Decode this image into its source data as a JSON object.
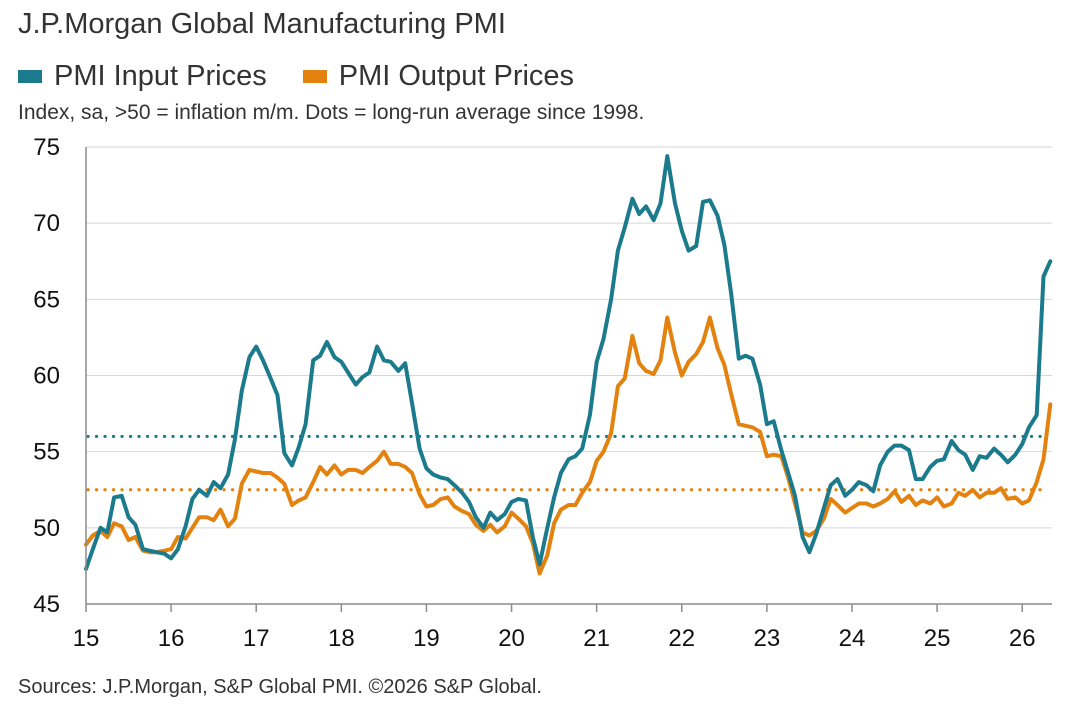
{
  "title": "J.P.Morgan Global Manufacturing PMI",
  "subtitle": "Index, sa, >50 = inflation m/m. Dots = long-run average since 1998.",
  "source": "Sources: J.P.Morgan, S&P Global PMI. ©2026 S&P Global.",
  "chart_data": {
    "type": "line",
    "title": "J.P.Morgan Global Manufacturing PMI",
    "subtitle": "Index, sa, >50 = inflation m/m. Dots = long-run average since 1998.",
    "legend_position": "top-left",
    "grid": "horizontal",
    "ylim": [
      45,
      75
    ],
    "yticks": [
      "45",
      "50",
      "55",
      "60",
      "65",
      "70",
      "75"
    ],
    "xlim": [
      2015.0,
      2026.35
    ],
    "xticks": [
      "15",
      "16",
      "17",
      "18",
      "19",
      "20",
      "21",
      "22",
      "23",
      "24",
      "25",
      "26"
    ],
    "series": [
      {
        "name": "PMI Input Prices",
        "color": "#1b7a8c",
        "long_run_average": 56.0,
        "points": [
          [
            2015.0,
            47.3
          ],
          [
            2015.08,
            48.6
          ],
          [
            2015.17,
            50.0
          ],
          [
            2015.25,
            49.7
          ],
          [
            2015.33,
            52.0
          ],
          [
            2015.42,
            52.1
          ],
          [
            2015.5,
            50.7
          ],
          [
            2015.58,
            50.2
          ],
          [
            2015.67,
            48.6
          ],
          [
            2015.75,
            48.5
          ],
          [
            2015.83,
            48.4
          ],
          [
            2015.92,
            48.3
          ],
          [
            2016.0,
            48.0
          ],
          [
            2016.08,
            48.6
          ],
          [
            2016.17,
            50.1
          ],
          [
            2016.25,
            51.9
          ],
          [
            2016.33,
            52.5
          ],
          [
            2016.42,
            52.1
          ],
          [
            2016.5,
            53.0
          ],
          [
            2016.58,
            52.6
          ],
          [
            2016.67,
            53.5
          ],
          [
            2016.75,
            55.8
          ],
          [
            2016.83,
            59.0
          ],
          [
            2016.92,
            61.2
          ],
          [
            2017.0,
            61.9
          ],
          [
            2017.08,
            61.0
          ],
          [
            2017.17,
            59.8
          ],
          [
            2017.25,
            58.7
          ],
          [
            2017.33,
            54.9
          ],
          [
            2017.42,
            54.1
          ],
          [
            2017.5,
            55.3
          ],
          [
            2017.58,
            56.8
          ],
          [
            2017.67,
            61.0
          ],
          [
            2017.75,
            61.3
          ],
          [
            2017.83,
            62.2
          ],
          [
            2017.92,
            61.2
          ],
          [
            2018.0,
            60.9
          ],
          [
            2018.08,
            60.2
          ],
          [
            2018.17,
            59.4
          ],
          [
            2018.25,
            59.9
          ],
          [
            2018.33,
            60.2
          ],
          [
            2018.42,
            61.9
          ],
          [
            2018.5,
            61.0
          ],
          [
            2018.58,
            60.9
          ],
          [
            2018.67,
            60.3
          ],
          [
            2018.75,
            60.8
          ],
          [
            2018.83,
            58.2
          ],
          [
            2018.92,
            55.2
          ],
          [
            2019.0,
            53.9
          ],
          [
            2019.08,
            53.5
          ],
          [
            2019.17,
            53.3
          ],
          [
            2019.25,
            53.2
          ],
          [
            2019.33,
            52.8
          ],
          [
            2019.42,
            52.3
          ],
          [
            2019.5,
            51.7
          ],
          [
            2019.58,
            50.7
          ],
          [
            2019.67,
            50.0
          ],
          [
            2019.75,
            51.0
          ],
          [
            2019.83,
            50.5
          ],
          [
            2019.92,
            50.9
          ],
          [
            2020.0,
            51.7
          ],
          [
            2020.08,
            51.9
          ],
          [
            2020.17,
            51.8
          ],
          [
            2020.25,
            49.4
          ],
          [
            2020.33,
            47.6
          ],
          [
            2020.42,
            50.0
          ],
          [
            2020.5,
            52.0
          ],
          [
            2020.58,
            53.6
          ],
          [
            2020.67,
            54.5
          ],
          [
            2020.75,
            54.7
          ],
          [
            2020.83,
            55.2
          ],
          [
            2020.92,
            57.4
          ],
          [
            2021.0,
            60.9
          ],
          [
            2021.08,
            62.4
          ],
          [
            2021.17,
            65.0
          ],
          [
            2021.25,
            68.2
          ],
          [
            2021.33,
            69.7
          ],
          [
            2021.42,
            71.6
          ],
          [
            2021.5,
            70.6
          ],
          [
            2021.58,
            71.1
          ],
          [
            2021.67,
            70.2
          ],
          [
            2021.75,
            71.3
          ],
          [
            2021.83,
            74.4
          ],
          [
            2021.92,
            71.3
          ],
          [
            2022.0,
            69.5
          ],
          [
            2022.08,
            68.2
          ],
          [
            2022.17,
            68.5
          ],
          [
            2022.25,
            71.4
          ],
          [
            2022.33,
            71.5
          ],
          [
            2022.42,
            70.5
          ],
          [
            2022.5,
            68.6
          ],
          [
            2022.58,
            65.4
          ],
          [
            2022.67,
            61.1
          ],
          [
            2022.75,
            61.3
          ],
          [
            2022.83,
            61.1
          ],
          [
            2022.92,
            59.4
          ],
          [
            2023.0,
            56.8
          ],
          [
            2023.08,
            57.0
          ],
          [
            2023.17,
            55.1
          ],
          [
            2023.25,
            53.6
          ],
          [
            2023.33,
            52.1
          ],
          [
            2023.42,
            49.4
          ],
          [
            2023.5,
            48.4
          ],
          [
            2023.58,
            49.6
          ],
          [
            2023.67,
            51.3
          ],
          [
            2023.75,
            52.8
          ],
          [
            2023.83,
            53.2
          ],
          [
            2023.92,
            52.1
          ],
          [
            2024.0,
            52.5
          ],
          [
            2024.08,
            53.0
          ],
          [
            2024.17,
            52.8
          ],
          [
            2024.25,
            52.4
          ],
          [
            2024.33,
            54.1
          ],
          [
            2024.42,
            55.0
          ],
          [
            2024.5,
            55.4
          ],
          [
            2024.58,
            55.4
          ],
          [
            2024.67,
            55.1
          ],
          [
            2024.75,
            53.2
          ],
          [
            2024.83,
            53.2
          ],
          [
            2024.92,
            54.0
          ],
          [
            2025.0,
            54.4
          ],
          [
            2025.08,
            54.5
          ],
          [
            2025.17,
            55.7
          ],
          [
            2025.25,
            55.1
          ],
          [
            2025.33,
            54.8
          ],
          [
            2025.42,
            53.8
          ],
          [
            2025.5,
            54.7
          ],
          [
            2025.58,
            54.6
          ],
          [
            2025.67,
            55.2
          ],
          [
            2025.75,
            54.8
          ],
          [
            2025.83,
            54.3
          ],
          [
            2025.92,
            54.8
          ],
          [
            2026.0,
            55.5
          ],
          [
            2026.08,
            56.6
          ],
          [
            2026.17,
            57.4
          ],
          [
            2026.25,
            66.5
          ],
          [
            2026.33,
            67.5
          ]
        ]
      },
      {
        "name": "PMI Output Prices",
        "color": "#e3820f",
        "long_run_average": 52.5,
        "points": [
          [
            2015.0,
            48.9
          ],
          [
            2015.08,
            49.5
          ],
          [
            2015.17,
            49.8
          ],
          [
            2015.25,
            49.4
          ],
          [
            2015.33,
            50.3
          ],
          [
            2015.42,
            50.1
          ],
          [
            2015.5,
            49.2
          ],
          [
            2015.58,
            49.4
          ],
          [
            2015.67,
            48.5
          ],
          [
            2015.75,
            48.4
          ],
          [
            2015.83,
            48.4
          ],
          [
            2015.92,
            48.5
          ],
          [
            2016.0,
            48.6
          ],
          [
            2016.08,
            49.4
          ],
          [
            2016.17,
            49.3
          ],
          [
            2016.25,
            50.0
          ],
          [
            2016.33,
            50.7
          ],
          [
            2016.42,
            50.7
          ],
          [
            2016.5,
            50.5
          ],
          [
            2016.58,
            51.2
          ],
          [
            2016.67,
            50.1
          ],
          [
            2016.75,
            50.6
          ],
          [
            2016.83,
            52.9
          ],
          [
            2016.92,
            53.8
          ],
          [
            2017.0,
            53.7
          ],
          [
            2017.08,
            53.6
          ],
          [
            2017.17,
            53.6
          ],
          [
            2017.25,
            53.3
          ],
          [
            2017.33,
            52.9
          ],
          [
            2017.42,
            51.5
          ],
          [
            2017.5,
            51.8
          ],
          [
            2017.58,
            52.0
          ],
          [
            2017.67,
            53.0
          ],
          [
            2017.75,
            54.0
          ],
          [
            2017.83,
            53.5
          ],
          [
            2017.92,
            54.1
          ],
          [
            2018.0,
            53.5
          ],
          [
            2018.08,
            53.8
          ],
          [
            2018.17,
            53.8
          ],
          [
            2018.25,
            53.6
          ],
          [
            2018.33,
            54.0
          ],
          [
            2018.42,
            54.4
          ],
          [
            2018.5,
            55.0
          ],
          [
            2018.58,
            54.2
          ],
          [
            2018.67,
            54.2
          ],
          [
            2018.75,
            54.0
          ],
          [
            2018.83,
            53.6
          ],
          [
            2018.92,
            52.2
          ],
          [
            2019.0,
            51.4
          ],
          [
            2019.08,
            51.5
          ],
          [
            2019.17,
            51.9
          ],
          [
            2019.25,
            52.0
          ],
          [
            2019.33,
            51.4
          ],
          [
            2019.42,
            51.1
          ],
          [
            2019.5,
            50.9
          ],
          [
            2019.58,
            50.2
          ],
          [
            2019.67,
            49.8
          ],
          [
            2019.75,
            50.2
          ],
          [
            2019.83,
            49.7
          ],
          [
            2019.92,
            50.1
          ],
          [
            2020.0,
            51.0
          ],
          [
            2020.08,
            50.6
          ],
          [
            2020.17,
            50.1
          ],
          [
            2020.25,
            49.0
          ],
          [
            2020.33,
            47.0
          ],
          [
            2020.42,
            48.2
          ],
          [
            2020.5,
            50.3
          ],
          [
            2020.58,
            51.2
          ],
          [
            2020.67,
            51.5
          ],
          [
            2020.75,
            51.5
          ],
          [
            2020.83,
            52.3
          ],
          [
            2020.92,
            53.0
          ],
          [
            2021.0,
            54.4
          ],
          [
            2021.08,
            55.0
          ],
          [
            2021.17,
            56.2
          ],
          [
            2021.25,
            59.3
          ],
          [
            2021.33,
            59.8
          ],
          [
            2021.42,
            62.6
          ],
          [
            2021.5,
            60.8
          ],
          [
            2021.58,
            60.3
          ],
          [
            2021.67,
            60.1
          ],
          [
            2021.75,
            61.0
          ],
          [
            2021.83,
            63.8
          ],
          [
            2021.92,
            61.5
          ],
          [
            2022.0,
            60.0
          ],
          [
            2022.08,
            60.9
          ],
          [
            2022.17,
            61.4
          ],
          [
            2022.25,
            62.2
          ],
          [
            2022.33,
            63.8
          ],
          [
            2022.42,
            61.8
          ],
          [
            2022.5,
            60.7
          ],
          [
            2022.58,
            58.8
          ],
          [
            2022.67,
            56.8
          ],
          [
            2022.75,
            56.7
          ],
          [
            2022.83,
            56.6
          ],
          [
            2022.92,
            56.3
          ],
          [
            2023.0,
            54.7
          ],
          [
            2023.08,
            54.8
          ],
          [
            2023.17,
            54.7
          ],
          [
            2023.25,
            53.3
          ],
          [
            2023.33,
            51.6
          ],
          [
            2023.42,
            49.7
          ],
          [
            2023.5,
            49.5
          ],
          [
            2023.58,
            49.8
          ],
          [
            2023.67,
            50.6
          ],
          [
            2023.75,
            51.9
          ],
          [
            2023.83,
            51.5
          ],
          [
            2023.92,
            51.0
          ],
          [
            2024.0,
            51.3
          ],
          [
            2024.08,
            51.6
          ],
          [
            2024.17,
            51.6
          ],
          [
            2024.25,
            51.4
          ],
          [
            2024.33,
            51.6
          ],
          [
            2024.42,
            51.9
          ],
          [
            2024.5,
            52.4
          ],
          [
            2024.58,
            51.7
          ],
          [
            2024.67,
            52.1
          ],
          [
            2024.75,
            51.5
          ],
          [
            2024.83,
            51.8
          ],
          [
            2024.92,
            51.6
          ],
          [
            2025.0,
            52.0
          ],
          [
            2025.08,
            51.4
          ],
          [
            2025.17,
            51.6
          ],
          [
            2025.25,
            52.3
          ],
          [
            2025.33,
            52.1
          ],
          [
            2025.42,
            52.5
          ],
          [
            2025.5,
            52.0
          ],
          [
            2025.58,
            52.3
          ],
          [
            2025.67,
            52.3
          ],
          [
            2025.75,
            52.6
          ],
          [
            2025.83,
            51.9
          ],
          [
            2025.92,
            52.0
          ],
          [
            2026.0,
            51.6
          ],
          [
            2026.08,
            51.8
          ],
          [
            2026.17,
            53.0
          ],
          [
            2026.25,
            54.5
          ],
          [
            2026.33,
            58.1
          ]
        ]
      }
    ]
  }
}
